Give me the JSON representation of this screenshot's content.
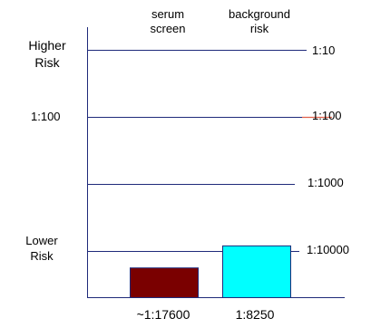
{
  "colors": {
    "axis": "#1f2a7a",
    "gridline": "#1f2a7a",
    "redline": "#e0604a",
    "serum_fill": "#7a0000",
    "background_fill": "#00ffff",
    "bar_stroke": "#1f2a7a"
  },
  "chart_data": {
    "type": "bar",
    "scale": "log10",
    "categories": [
      "serum\nscreen",
      "background\nrisk"
    ],
    "values": [
      5.68e-05,
      0.000121
    ],
    "value_labels": [
      "~1:17600",
      "1:8250"
    ],
    "gridlines": [
      {
        "value": 0.1,
        "label": "1:10"
      },
      {
        "value": 0.01,
        "label": "1:100"
      },
      {
        "value": 0.001,
        "label": "1:1000"
      },
      {
        "value": 0.0001,
        "label": "1:10000"
      }
    ],
    "ylim": [
      1e-05,
      1
    ],
    "left_labels": {
      "higher": "Higher\nRisk",
      "middle": "1:100",
      "lower": "Lower\nRisk"
    },
    "grid": true
  }
}
